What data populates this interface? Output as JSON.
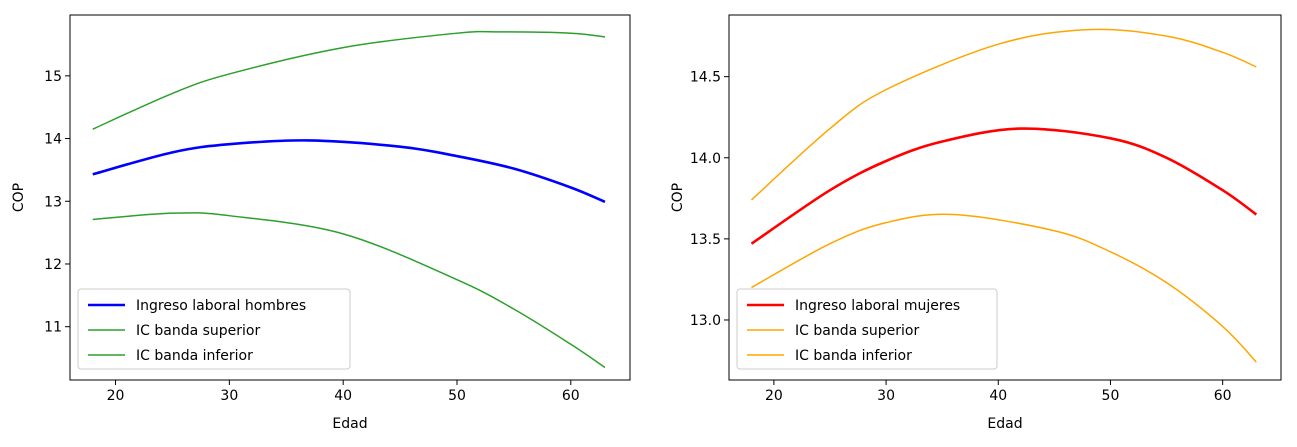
{
  "chart_data": [
    {
      "type": "line",
      "xlabel": "Edad",
      "ylabel": "COP",
      "xlim": [
        16,
        65.2
      ],
      "ylim": [
        10.15,
        15.97
      ],
      "xticks": [
        20,
        30,
        40,
        50,
        60
      ],
      "yticks": [
        11,
        12,
        13,
        14,
        15
      ],
      "legend_position": "lower-left",
      "series": [
        {
          "name": "Ingreso laboral hombres",
          "color": "#0000ff",
          "width": 2.6,
          "x": [
            18,
            25,
            30,
            37,
            45,
            50,
            55,
            60,
            63
          ],
          "y": [
            13.43,
            13.78,
            13.91,
            13.97,
            13.87,
            13.72,
            13.52,
            13.22,
            12.99
          ]
        },
        {
          "name": "IC banda superior",
          "color": "#2ca02c",
          "width": 1.5,
          "x": [
            18,
            25,
            30,
            40,
            50,
            54,
            60,
            63
          ],
          "y": [
            14.15,
            14.72,
            15.03,
            15.45,
            15.68,
            15.7,
            15.68,
            15.62
          ]
        },
        {
          "name": "IC banda inferior",
          "color": "#2ca02c",
          "width": 1.5,
          "x": [
            18,
            25,
            30,
            40,
            50,
            55,
            60,
            63
          ],
          "y": [
            12.71,
            12.81,
            12.77,
            12.48,
            11.75,
            11.28,
            10.72,
            10.35
          ]
        }
      ]
    },
    {
      "type": "line",
      "xlabel": "Edad",
      "ylabel": "COP",
      "xlim": [
        16,
        65.2
      ],
      "ylim": [
        12.63,
        14.88
      ],
      "xticks": [
        20,
        30,
        40,
        50,
        60
      ],
      "yticks": [
        13.0,
        13.5,
        14.0,
        14.5
      ],
      "ytick_labels": [
        "13.0",
        "13.5",
        "14.0",
        "14.5"
      ],
      "legend_position": "lower-left",
      "series": [
        {
          "name": "Ingreso laboral mujeres",
          "color": "#ff0000",
          "width": 2.6,
          "x": [
            18,
            25,
            30,
            35,
            42,
            50,
            55,
            60,
            63
          ],
          "y": [
            13.47,
            13.8,
            13.98,
            14.1,
            14.18,
            14.12,
            14.0,
            13.8,
            13.65
          ]
        },
        {
          "name": "IC banda superior",
          "color": "#ffa500",
          "width": 1.5,
          "x": [
            18,
            25,
            30,
            40,
            48,
            55,
            60,
            63
          ],
          "y": [
            13.74,
            14.18,
            14.42,
            14.7,
            14.79,
            14.75,
            14.65,
            14.56
          ]
        },
        {
          "name": "IC banda inferior",
          "color": "#ffa500",
          "width": 1.5,
          "x": [
            18,
            25,
            30,
            36,
            45,
            50,
            55,
            60,
            63
          ],
          "y": [
            13.2,
            13.47,
            13.6,
            13.65,
            13.55,
            13.42,
            13.23,
            12.96,
            12.74
          ]
        }
      ]
    }
  ]
}
